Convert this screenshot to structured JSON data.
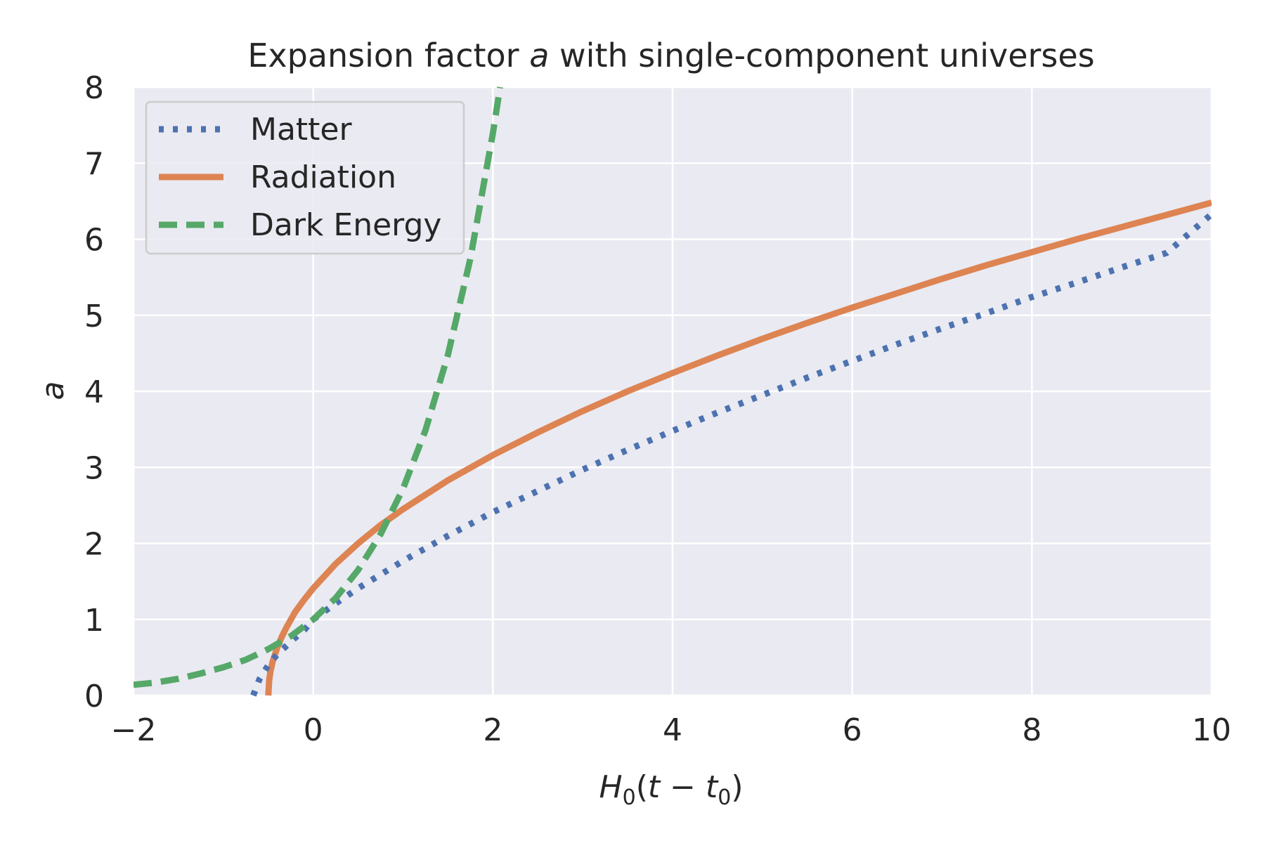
{
  "chart_data": {
    "type": "line",
    "title": "Expansion factor a with single-component universes",
    "title_parts": {
      "prefix": "Expansion factor ",
      "italic": "a",
      "suffix": " with single-component universes"
    },
    "xlabel": "H0(t − t0)",
    "xlabel_parts": {
      "H": "H",
      "sub0": "0",
      "open": "(",
      "t": "t",
      "minus": " − ",
      "t2": "t",
      "sub1": "0",
      "close": ")"
    },
    "ylabel": "a",
    "xlim": [
      -2,
      10
    ],
    "ylim": [
      0,
      8
    ],
    "xticks": [
      -2,
      0,
      2,
      4,
      6,
      8,
      10
    ],
    "xtick_labels": [
      "−2",
      "0",
      "2",
      "4",
      "6",
      "8",
      "10"
    ],
    "yticks": [
      0,
      1,
      2,
      3,
      4,
      5,
      6,
      7,
      8
    ],
    "ytick_labels": [
      "0",
      "1",
      "2",
      "3",
      "4",
      "5",
      "6",
      "7",
      "8"
    ],
    "grid": true,
    "legend_placement": "upper-left",
    "background_color": "#eaeaf2",
    "grid_color": "#ffffff",
    "series": [
      {
        "name": "Matter",
        "color": "#4c72b0",
        "style": "dotted",
        "x": [
          -0.667,
          -0.6,
          -0.5,
          -0.4,
          -0.3,
          -0.2,
          -0.1,
          0,
          0.25,
          0.5,
          0.75,
          1,
          1.5,
          2,
          2.5,
          3,
          3.5,
          4,
          4.5,
          5,
          5.5,
          6,
          6.5,
          7,
          7.5,
          8,
          8.5,
          9,
          9.5,
          10
        ],
        "values": [
          0.0,
          0.21,
          0.4,
          0.54,
          0.65,
          0.76,
          0.86,
          1.0,
          1.21,
          1.41,
          1.59,
          1.77,
          2.1,
          2.41,
          2.69,
          2.97,
          3.23,
          3.48,
          3.72,
          3.95,
          4.18,
          4.4,
          4.62,
          4.83,
          5.03,
          5.24,
          5.43,
          5.63,
          5.82,
          6.33
        ]
      },
      {
        "name": "Radiation",
        "color": "#dd8452",
        "style": "solid",
        "x": [
          -0.5,
          -0.49,
          -0.475,
          -0.45,
          -0.4,
          -0.35,
          -0.3,
          -0.2,
          -0.1,
          0,
          0.25,
          0.5,
          0.75,
          1,
          1.5,
          2,
          2.5,
          3,
          3.5,
          4,
          4.5,
          5,
          5.5,
          6,
          6.5,
          7,
          7.5,
          8,
          8.5,
          9,
          9.5,
          10
        ],
        "values": [
          0.0,
          0.2,
          0.32,
          0.45,
          0.63,
          0.77,
          0.89,
          1.1,
          1.26,
          1.41,
          1.73,
          2.0,
          2.24,
          2.45,
          2.83,
          3.16,
          3.46,
          3.74,
          4.0,
          4.24,
          4.47,
          4.69,
          4.9,
          5.1,
          5.29,
          5.48,
          5.66,
          5.83,
          6.0,
          6.16,
          6.32,
          6.48
        ]
      },
      {
        "name": "Dark Energy",
        "color": "#55a868",
        "style": "dashed",
        "x": [
          -2,
          -1.75,
          -1.5,
          -1.25,
          -1,
          -0.75,
          -0.5,
          -0.25,
          0,
          0.25,
          0.5,
          0.75,
          1,
          1.25,
          1.5,
          1.75,
          2,
          2.08
        ],
        "values": [
          0.14,
          0.17,
          0.22,
          0.29,
          0.37,
          0.47,
          0.61,
          0.78,
          1.0,
          1.28,
          1.65,
          2.12,
          2.72,
          3.49,
          4.48,
          5.75,
          7.39,
          8.0
        ]
      }
    ]
  }
}
